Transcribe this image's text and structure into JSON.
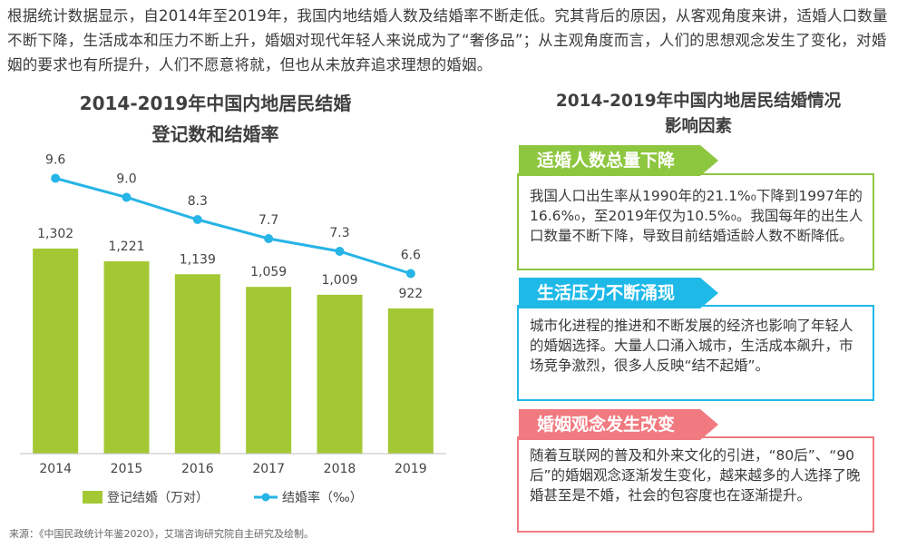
{
  "intro_text": "根据统计数据显示，自2014年至2019年，我国内地结婚人数及结婚率不断走低。究其背后的原因，从客观角度来讲，适婚人口数量不断下降，生活成本和压力不断上升，婚姻对现代年轻人来说成为了“奢侈品”；从主观角度而言，人们的思想观念发生了变化，对婚姻的要求也有所提升，人们不愿意将就，但也从未放弃追求理想的婚姻。",
  "chart_data": {
    "type": "bar+line",
    "title_line1": "2014-2019年中国内地居民结婚",
    "title_line2": "登记数和结婚率",
    "categories": [
      "2014",
      "2015",
      "2016",
      "2017",
      "2018",
      "2019"
    ],
    "series": [
      {
        "name": "登记结婚（万对）",
        "type": "bar",
        "values": [
          1302,
          1221,
          1139,
          1059,
          1009,
          922
        ],
        "labels": [
          "1,302",
          "1,221",
          "1,139",
          "1,059",
          "1,009",
          "922"
        ]
      },
      {
        "name": "结婚率（‰）",
        "type": "line",
        "values": [
          9.6,
          9.0,
          8.3,
          7.7,
          7.3,
          6.6
        ],
        "labels": [
          "9.6",
          "9.0",
          "8.3",
          "7.7",
          "7.3",
          "6.6"
        ]
      }
    ],
    "bar_ylim": [
      0,
      2200
    ],
    "line_ylim": [
      3.5,
      11.5
    ],
    "legend_placement": "bottom",
    "grid": false
  },
  "right_panel": {
    "title_line1": "2014-2019年中国内地居民结婚情况",
    "title_line2": "影响因素",
    "factors": [
      {
        "title": "适婚人数总量下降",
        "text": "我国人口出生率从1990年的21.1%₀下降到1997年的16.6%₀，至2019年仅为10.5%₀。我国每年的出生人口数量不断下降，导致目前结婚适龄人数不断降低。"
      },
      {
        "title": "生活压力不断涌现",
        "text": "城市化进程的推进和不断发展的经济也影响了年轻人的婚姻选择。大量人口涌入城市，生活成本飙升，市场竞争激烈，很多人反映“结不起婚”。"
      },
      {
        "title": "婚姻观念发生改变",
        "text": "随着互联网的普及和外来文化的引进，“80后”、“90后”的婚姻观念逐渐发生变化，越来越多的人选择了晚婚甚至是不婚，社会的包容度也在逐渐提升。"
      }
    ]
  },
  "source": "来源：《中国民政统计年鉴2020》，艾瑞咨询研究院自主研究及绘制。",
  "colors": {
    "bar": "#a4c834",
    "line": "#27b4e6",
    "green": "#8dc63f",
    "blue": "#1fb9e8",
    "pink": "#f07a80"
  }
}
